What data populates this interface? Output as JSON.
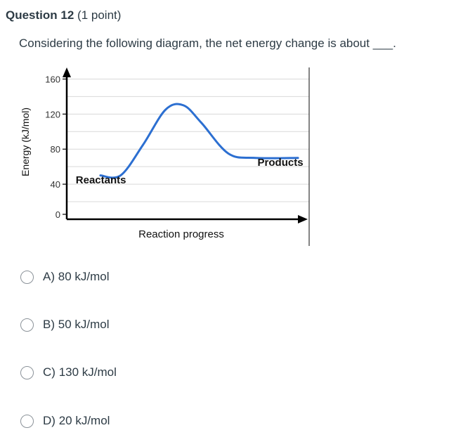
{
  "question": {
    "title": "Question 12",
    "points": "(1 point)",
    "text": "Considering the following diagram, the net energy change is about ___."
  },
  "chart_data": {
    "type": "line",
    "ylabel": "Energy (kJ/mol)",
    "xlabel": "Reaction progress",
    "yticks": [
      0,
      40,
      80,
      120,
      160
    ],
    "ylim": [
      0,
      170
    ],
    "xlim": [
      0,
      10
    ],
    "grid": true,
    "annotations": [
      {
        "text": "Reactants",
        "x": 0.4,
        "y": 45
      },
      {
        "text": "Products",
        "x": 8.5,
        "y": 65
      }
    ],
    "series": [
      {
        "x": [
          1.5,
          2.4,
          3.4,
          4.4,
          5.2,
          6.0,
          7.2,
          8.4,
          10.3
        ],
        "values": [
          50,
          50,
          85,
          125,
          130,
          110,
          75,
          70,
          70
        ]
      }
    ],
    "colors": {
      "curve": "#2c6fd1",
      "axis": "#000000"
    }
  },
  "options": [
    {
      "letter": "A)",
      "label": "80 kJ/mol"
    },
    {
      "letter": "B)",
      "label": "50 kJ/mol"
    },
    {
      "letter": "C)",
      "label": "130 kJ/mol"
    },
    {
      "letter": "D)",
      "label": "20 kJ/mol"
    }
  ]
}
